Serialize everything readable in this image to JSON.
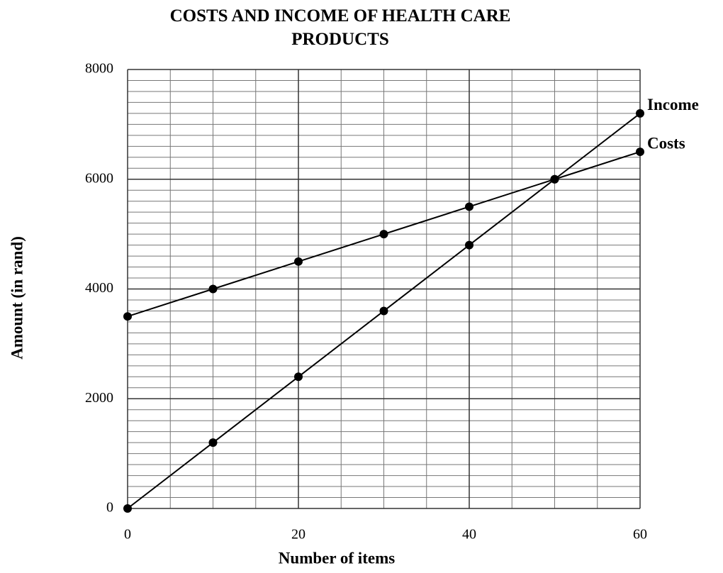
{
  "chart_data": {
    "type": "line",
    "title": "COSTS AND INCOME OF HEALTH CARE PRODUCTS",
    "x_label": "Number of items",
    "y_label": "Amount (in rand)",
    "x": [
      0,
      10,
      20,
      30,
      40,
      50,
      60
    ],
    "series": [
      {
        "name": "Income",
        "color": "#000000",
        "values": [
          0,
          1200,
          2400,
          3600,
          4800,
          6000,
          7200
        ]
      },
      {
        "name": "Costs",
        "color": "#000000",
        "values": [
          3500,
          4000,
          4500,
          5000,
          5500,
          6000,
          6500
        ]
      }
    ],
    "xlim": [
      0,
      60
    ],
    "xticks": [
      0,
      20,
      40,
      60
    ],
    "ylim": [
      0,
      8000
    ],
    "yticks": [
      0,
      2000,
      4000,
      6000,
      8000
    ],
    "grid": true,
    "x_minor_step": 5,
    "y_minor_step": 200
  }
}
